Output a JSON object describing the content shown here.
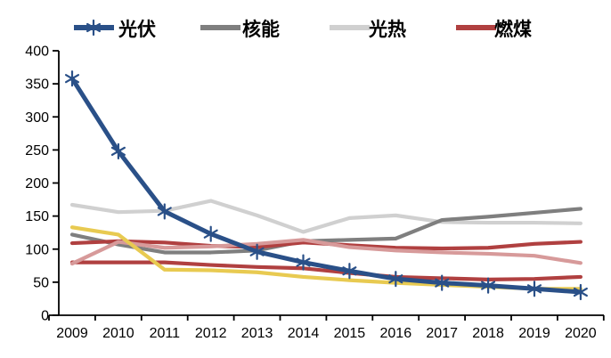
{
  "chart_data": {
    "type": "line",
    "title": "",
    "xlabel": "",
    "ylabel": "",
    "categories": [
      "2009",
      "2010",
      "2011",
      "2012",
      "2013",
      "2014",
      "2015",
      "2016",
      "2017",
      "2018",
      "2019",
      "2020"
    ],
    "ylim": [
      0,
      400
    ],
    "yticks": [
      0,
      50,
      100,
      150,
      200,
      250,
      300,
      350,
      400
    ],
    "grid": false,
    "legend_position": "top",
    "axis_color": "#000000",
    "series": [
      {
        "id": "pv",
        "name": "光伏",
        "color": "#2a5088",
        "marker": "star",
        "in_legend": true,
        "values": [
          358,
          248,
          157,
          123,
          96,
          80,
          67,
          55,
          49,
          45,
          40,
          35
        ]
      },
      {
        "id": "nuclear",
        "name": "核能",
        "color": "#7f7f7f",
        "marker": "none",
        "in_legend": true,
        "values": [
          122,
          107,
          95,
          95,
          98,
          112,
          114,
          116,
          144,
          149,
          155,
          161
        ]
      },
      {
        "id": "solar-thermal",
        "name": "光热",
        "color": "#d0d0d0",
        "marker": "none",
        "in_legend": true,
        "values": [
          167,
          156,
          158,
          173,
          151,
          126,
          147,
          151,
          141,
          140,
          140,
          139
        ]
      },
      {
        "id": "coal",
        "name": "燃煤",
        "color": "#b04040",
        "marker": "none",
        "in_legend": true,
        "values": [
          109,
          112,
          110,
          105,
          103,
          110,
          106,
          102,
          101,
          102,
          108,
          111
        ]
      },
      {
        "id": "pink-unlabeled",
        "name": "",
        "color": "#d79a9a",
        "marker": "none",
        "in_legend": false,
        "values": [
          78,
          111,
          102,
          104,
          108,
          114,
          103,
          98,
          95,
          93,
          90,
          79
        ]
      },
      {
        "id": "dark-red-unlabeled",
        "name": "",
        "color": "#b04040",
        "marker": "none",
        "in_legend": false,
        "values": [
          80,
          80,
          80,
          76,
          73,
          71,
          64,
          58,
          56,
          54,
          55,
          58
        ]
      },
      {
        "id": "yellow-unlabeled",
        "name": "",
        "color": "#e8ca51",
        "marker": "none",
        "in_legend": false,
        "values": [
          133,
          122,
          69,
          68,
          65,
          58,
          53,
          49,
          46,
          43,
          40,
          40
        ]
      }
    ],
    "draw_order": [
      "solar-thermal",
      "nuclear",
      "coal",
      "dark-red-unlabeled",
      "pink-unlabeled",
      "yellow-unlabeled",
      "pv"
    ]
  }
}
